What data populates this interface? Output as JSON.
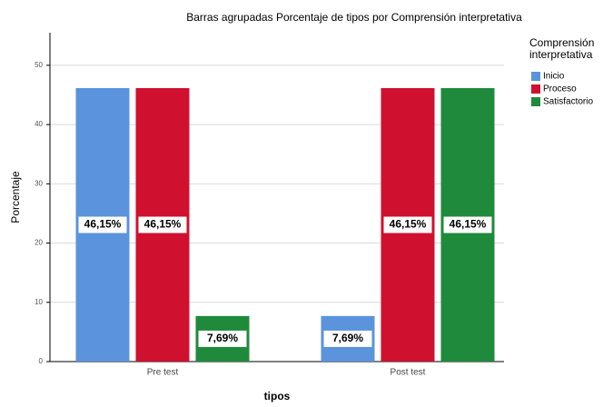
{
  "chart_data": {
    "type": "bar",
    "title": "Barras agrupadas Porcentaje de tipos por Comprensión interpretativa",
    "x_label": "tipos",
    "y_label": "Porcentaje",
    "legend_title": "Comprensión interpretativa",
    "categories": [
      "Pre test",
      "Post test"
    ],
    "series": [
      {
        "name": "Inicio",
        "color": "#5b93dc",
        "values": [
          46.15,
          7.69
        ],
        "value_labels": [
          "46,15%",
          "7,69%"
        ]
      },
      {
        "name": "Proceso",
        "color": "#d0102f",
        "values": [
          46.15,
          46.15
        ],
        "value_labels": [
          "46,15%",
          "46,15%"
        ]
      },
      {
        "name": "Satisfactorio",
        "color": "#1f8a3b",
        "values": [
          7.69,
          46.15
        ],
        "value_labels": [
          "7,69%",
          "46,15%"
        ]
      }
    ],
    "ylim": [
      0,
      55.5
    ],
    "yticks": [
      0,
      10,
      20,
      30,
      40,
      50
    ],
    "grid": true,
    "legend": "right"
  }
}
